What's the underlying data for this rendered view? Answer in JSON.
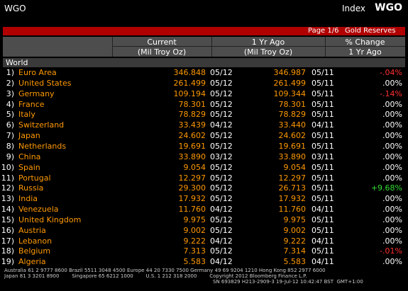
{
  "header": {
    "left": "WGO",
    "right_prefix": "Index",
    "right_ticker": "WGO"
  },
  "page_bar": {
    "page": "Page 1/6",
    "title": "Gold Reserves"
  },
  "columns": {
    "current": {
      "title": "Current",
      "unit": "(Mil Troy Oz)"
    },
    "year_ago": {
      "title": "1 Yr Ago",
      "unit": "(Mil Troy Oz)"
    },
    "change": {
      "title": "% Change",
      "unit": "1 Yr Ago"
    }
  },
  "group": "World",
  "table": {
    "rows": [
      [
        "1)",
        "Euro Area",
        "346.848",
        "05/12",
        "346.987",
        "05/11",
        "-.04%"
      ],
      [
        "2)",
        "United States",
        "261.499",
        "05/12",
        "261.499",
        "05/11",
        ".00%"
      ],
      [
        "3)",
        "Germany",
        "109.194",
        "05/12",
        "109.344",
        "05/11",
        "-.14%"
      ],
      [
        "4)",
        "France",
        "78.301",
        "05/12",
        "78.301",
        "05/11",
        ".00%"
      ],
      [
        "5)",
        "Italy",
        "78.829",
        "05/12",
        "78.829",
        "05/11",
        ".00%"
      ],
      [
        "6)",
        "Switzerland",
        "33.439",
        "04/12",
        "33.440",
        "04/11",
        ".00%"
      ],
      [
        "7)",
        "Japan",
        "24.602",
        "05/12",
        "24.602",
        "05/11",
        ".00%"
      ],
      [
        "8)",
        "Netherlands",
        "19.691",
        "05/12",
        "19.691",
        "05/11",
        ".00%"
      ],
      [
        "9)",
        "China",
        "33.890",
        "03/12",
        "33.890",
        "03/11",
        ".00%"
      ],
      [
        "10)",
        "Spain",
        "9.054",
        "05/12",
        "9.054",
        "05/11",
        ".00%"
      ],
      [
        "11)",
        "Portugal",
        "12.297",
        "05/12",
        "12.297",
        "05/11",
        ".00%"
      ],
      [
        "12)",
        "Russia",
        "29.300",
        "05/12",
        "26.713",
        "05/11",
        "+9.68%"
      ],
      [
        "13)",
        "India",
        "17.932",
        "05/12",
        "17.932",
        "05/11",
        ".00%"
      ],
      [
        "14)",
        "Venezuela",
        "11.760",
        "04/12",
        "11.760",
        "04/11",
        ".00%"
      ],
      [
        "15)",
        "United Kingdom",
        "9.975",
        "05/12",
        "9.975",
        "05/11",
        ".00%"
      ],
      [
        "16)",
        "Austria",
        "9.002",
        "05/12",
        "9.002",
        "05/11",
        ".00%"
      ],
      [
        "17)",
        "Lebanon",
        "9.222",
        "04/12",
        "9.222",
        "04/11",
        ".00%"
      ],
      [
        "18)",
        "Belgium",
        "7.313",
        "05/12",
        "7.314",
        "05/11",
        "-.01%"
      ],
      [
        "19)",
        "Algeria",
        "5.583",
        "04/12",
        "5.583",
        "04/11",
        ".00%"
      ]
    ]
  },
  "footer": {
    "lines": [
      "Australia 61 2 9777 8600 Brazil 5511 3048 4500 Europe 44 20 7330 7500 Germany 49 69 9204 1210 Hong Kong 852 2977 6000",
      "Japan 81 3 3201 8900        Singapore 65 6212 1000        U.S. 1 212 318 2000        Copyright 2012 Bloomberg Finance L.P.",
      "SN 693829 H213-2909-3 19-Jul-12 10:42:47 BST  GMT+1:00"
    ]
  }
}
